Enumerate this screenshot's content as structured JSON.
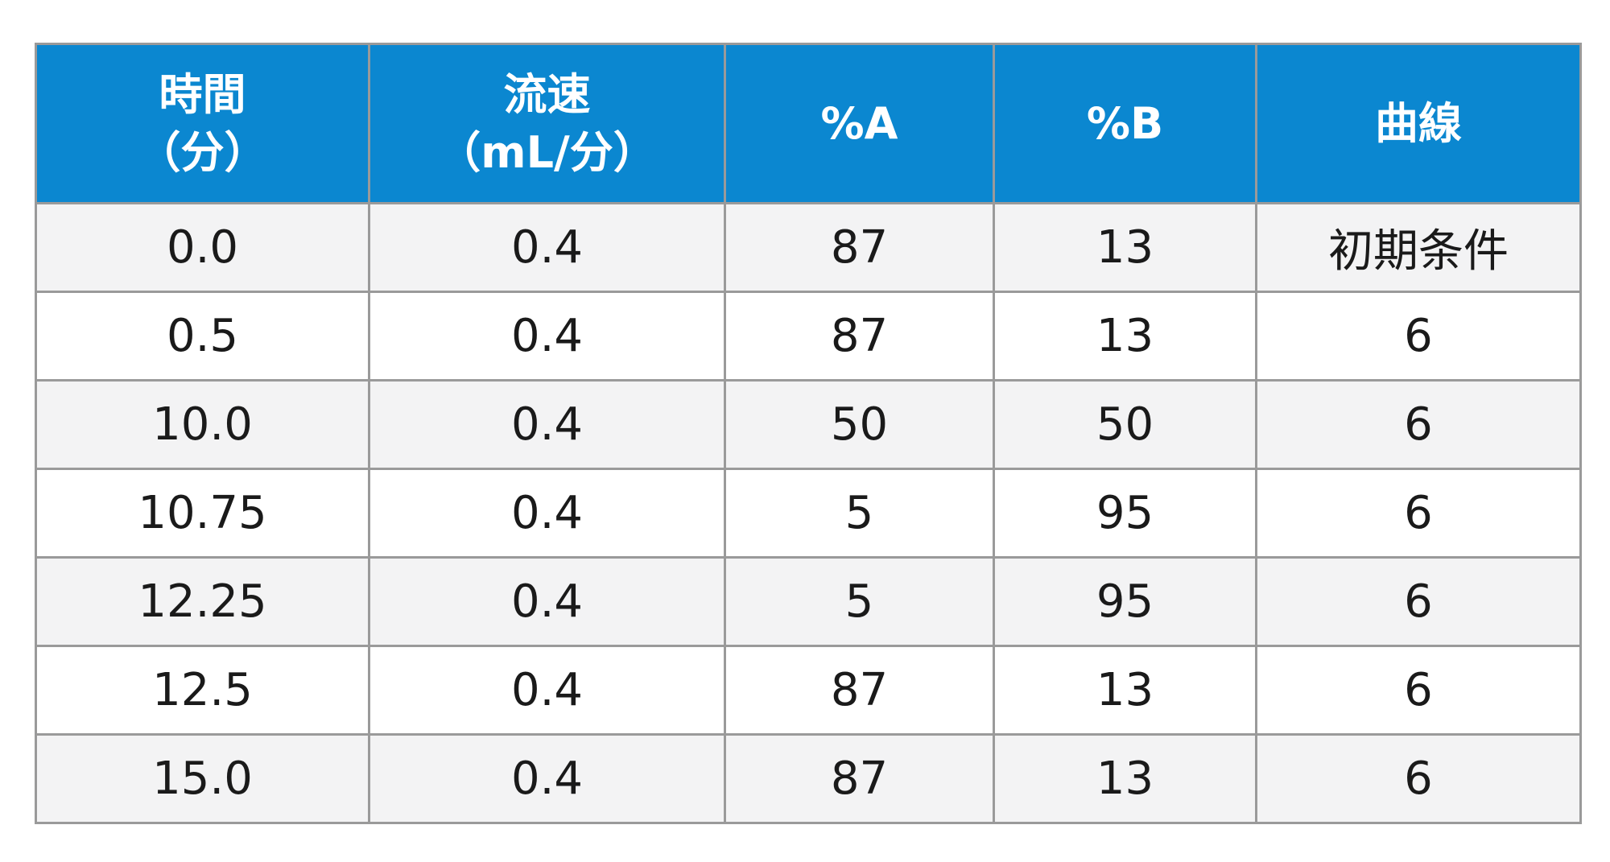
{
  "table": {
    "headers": [
      {
        "line1": "時間",
        "line2": "（分）"
      },
      {
        "line1": "流速",
        "line2": "（mL/分）"
      },
      {
        "line1": "%A",
        "line2": ""
      },
      {
        "line1": "%B",
        "line2": ""
      },
      {
        "line1": "曲線",
        "line2": ""
      }
    ],
    "rows": [
      [
        "0.0",
        "0.4",
        "87",
        "13",
        "初期条件"
      ],
      [
        "0.5",
        "0.4",
        "87",
        "13",
        "6"
      ],
      [
        "10.0",
        "0.4",
        "50",
        "50",
        "6"
      ],
      [
        "10.75",
        "0.4",
        "5",
        "95",
        "6"
      ],
      [
        "12.25",
        "0.4",
        "5",
        "95",
        "6"
      ],
      [
        "12.5",
        "0.4",
        "87",
        "13",
        "6"
      ],
      [
        "15.0",
        "0.4",
        "87",
        "13",
        "6"
      ]
    ]
  },
  "colors": {
    "header_bg": "#0b87d0",
    "header_text": "#ffffff",
    "row_alt_bg": "#f3f3f4",
    "border": "#9a9a9a"
  }
}
